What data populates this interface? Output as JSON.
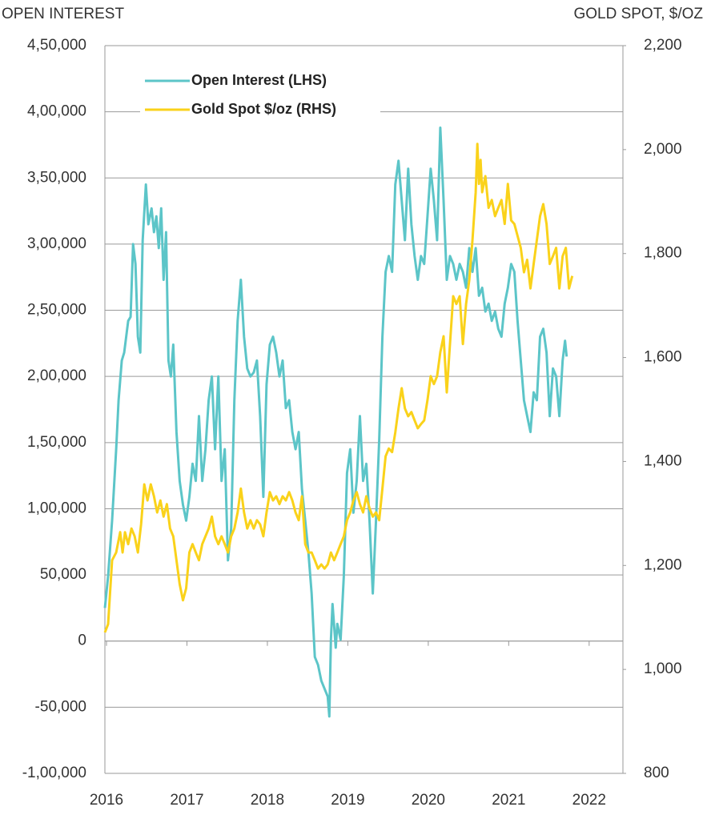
{
  "chart_data": {
    "type": "line",
    "ylabel": "OPEN INTEREST",
    "y2label": "GOLD SPOT, $/OZ",
    "legend": "upper left",
    "grid": true,
    "xlim": [
      2015.98,
      2022.42
    ],
    "xticks": [
      2016,
      2017,
      2018,
      2019,
      2020,
      2021,
      2022
    ],
    "ylim": [
      -100000,
      450000
    ],
    "yticks": [
      {
        "value": -100000,
        "label": "-1,00,000"
      },
      {
        "value": -50000,
        "label": "-50,000"
      },
      0,
      {
        "value": 50000,
        "label": "50,000"
      },
      {
        "value": 100000,
        "label": "1,00,000"
      },
      {
        "value": 150000,
        "label": "1,50,000"
      },
      {
        "value": 200000,
        "label": "2,00,000"
      },
      {
        "value": 250000,
        "label": "2,50,000"
      },
      {
        "value": 300000,
        "label": "3,00,000"
      },
      {
        "value": 350000,
        "label": "3,50,000"
      },
      {
        "value": 400000,
        "label": "4,00,000"
      },
      {
        "value": 450000,
        "label": "4,50,000"
      }
    ],
    "y2lim": [
      800,
      2200
    ],
    "y2ticks": [
      800,
      {
        "value": 1000,
        "label": "1,000"
      },
      {
        "value": 1200,
        "label": "1,200"
      },
      {
        "value": 1400,
        "label": "1,400"
      },
      {
        "value": 1600,
        "label": "1,600"
      },
      {
        "value": 1800,
        "label": "1,800"
      },
      {
        "value": 2000,
        "label": "2,000"
      },
      {
        "value": 2200,
        "label": "2,200"
      }
    ],
    "series": [
      {
        "name": "Open Interest (LHS)",
        "color": "#5cc5c8",
        "axis": "y",
        "x": [
          2015.98,
          2016.02,
          2016.07,
          2016.12,
          2016.15,
          2016.19,
          2016.22,
          2016.27,
          2016.3,
          2016.33,
          2016.36,
          2016.39,
          2016.42,
          2016.45,
          2016.49,
          2016.52,
          2016.56,
          2016.59,
          2016.62,
          2016.65,
          2016.68,
          2016.71,
          2016.74,
          2016.77,
          2016.8,
          2016.83,
          2016.87,
          2016.91,
          2016.95,
          2016.99,
          2017.03,
          2017.07,
          2017.11,
          2017.15,
          2017.19,
          2017.23,
          2017.27,
          2017.31,
          2017.35,
          2017.39,
          2017.43,
          2017.47,
          2017.51,
          2017.55,
          2017.59,
          2017.63,
          2017.67,
          2017.71,
          2017.75,
          2017.79,
          2017.83,
          2017.87,
          2017.91,
          2017.95,
          2017.99,
          2018.03,
          2018.07,
          2018.11,
          2018.15,
          2018.19,
          2018.23,
          2018.27,
          2018.31,
          2018.35,
          2018.39,
          2018.43,
          2018.47,
          2018.51,
          2018.55,
          2018.59,
          2018.63,
          2018.67,
          2018.71,
          2018.75,
          2018.77,
          2018.79,
          2018.81,
          2018.85,
          2018.87,
          2018.91,
          2018.95,
          2018.99,
          2019.03,
          2019.07,
          2019.11,
          2019.15,
          2019.19,
          2019.23,
          2019.27,
          2019.31,
          2019.35,
          2019.39,
          2019.43,
          2019.47,
          2019.51,
          2019.55,
          2019.59,
          2019.63,
          2019.67,
          2019.71,
          2019.75,
          2019.79,
          2019.83,
          2019.87,
          2019.91,
          2019.95,
          2019.99,
          2020.03,
          2020.07,
          2020.11,
          2020.15,
          2020.19,
          2020.23,
          2020.27,
          2020.31,
          2020.35,
          2020.39,
          2020.43,
          2020.47,
          2020.51,
          2020.55,
          2020.59,
          2020.63,
          2020.67,
          2020.71,
          2020.75,
          2020.79,
          2020.83,
          2020.87,
          2020.91,
          2020.95,
          2020.99,
          2021.03,
          2021.07,
          2021.11,
          2021.15,
          2021.19,
          2021.23,
          2021.27,
          2021.31,
          2021.35,
          2021.39,
          2021.43,
          2021.47,
          2021.51,
          2021.55,
          2021.59,
          2021.63,
          2021.67,
          2021.7,
          2021.72
        ],
        "values": [
          25000,
          49000,
          91000,
          145000,
          182000,
          212000,
          218000,
          242000,
          245000,
          300000,
          285000,
          230000,
          218000,
          303000,
          345000,
          315000,
          327000,
          309000,
          321000,
          297000,
          327000,
          273000,
          309000,
          212000,
          200000,
          224000,
          158000,
          121000,
          103000,
          91000,
          109000,
          134000,
          121000,
          170000,
          121000,
          145000,
          182000,
          200000,
          145000,
          200000,
          121000,
          145000,
          61000,
          85000,
          182000,
          242000,
          273000,
          230000,
          206000,
          200000,
          203000,
          212000,
          170000,
          109000,
          194000,
          224000,
          230000,
          218000,
          200000,
          212000,
          176000,
          182000,
          158000,
          145000,
          158000,
          115000,
          91000,
          67000,
          36000,
          -12000,
          -18000,
          -30000,
          -36000,
          -42000,
          -57000,
          1000,
          28000,
          -5000,
          13000,
          1000,
          49000,
          127000,
          145000,
          97000,
          121000,
          170000,
          121000,
          134000,
          91000,
          36000,
          91000,
          152000,
          230000,
          279000,
          291000,
          279000,
          345000,
          363000,
          333000,
          303000,
          357000,
          315000,
          291000,
          273000,
          291000,
          285000,
          321000,
          357000,
          333000,
          303000,
          388000,
          333000,
          273000,
          291000,
          285000,
          273000,
          285000,
          279000,
          267000,
          297000,
          279000,
          297000,
          261000,
          267000,
          249000,
          255000,
          242000,
          249000,
          236000,
          230000,
          255000,
          267000,
          285000,
          279000,
          242000,
          212000,
          182000,
          170000,
          158000,
          188000,
          182000,
          230000,
          236000,
          218000,
          170000,
          206000,
          200000,
          170000,
          212000,
          227000,
          215000
        ]
      },
      {
        "name": "Gold Spot $/oz (RHS)",
        "color": "#fad21a",
        "axis": "y2",
        "x": [
          2015.98,
          2016.02,
          2016.07,
          2016.12,
          2016.17,
          2016.2,
          2016.23,
          2016.27,
          2016.31,
          2016.35,
          2016.39,
          2016.43,
          2016.47,
          2016.51,
          2016.55,
          2016.59,
          2016.63,
          2016.67,
          2016.71,
          2016.75,
          2016.79,
          2016.83,
          2016.87,
          2016.91,
          2016.95,
          2016.99,
          2017.03,
          2017.07,
          2017.11,
          2017.15,
          2017.19,
          2017.23,
          2017.27,
          2017.31,
          2017.35,
          2017.39,
          2017.43,
          2017.47,
          2017.51,
          2017.55,
          2017.59,
          2017.63,
          2017.67,
          2017.71,
          2017.75,
          2017.79,
          2017.83,
          2017.87,
          2017.91,
          2017.95,
          2017.99,
          2018.03,
          2018.07,
          2018.11,
          2018.15,
          2018.19,
          2018.23,
          2018.27,
          2018.31,
          2018.35,
          2018.39,
          2018.43,
          2018.47,
          2018.51,
          2018.55,
          2018.59,
          2018.63,
          2018.67,
          2018.71,
          2018.75,
          2018.79,
          2018.83,
          2018.87,
          2018.91,
          2018.95,
          2018.99,
          2019.03,
          2019.07,
          2019.11,
          2019.15,
          2019.19,
          2019.23,
          2019.27,
          2019.31,
          2019.35,
          2019.39,
          2019.43,
          2019.47,
          2019.51,
          2019.55,
          2019.59,
          2019.63,
          2019.67,
          2019.71,
          2019.75,
          2019.79,
          2019.83,
          2019.87,
          2019.91,
          2019.95,
          2019.99,
          2020.03,
          2020.07,
          2020.11,
          2020.15,
          2020.19,
          2020.23,
          2020.27,
          2020.31,
          2020.35,
          2020.39,
          2020.43,
          2020.47,
          2020.51,
          2020.55,
          2020.59,
          2020.61,
          2020.63,
          2020.65,
          2020.67,
          2020.71,
          2020.75,
          2020.79,
          2020.83,
          2020.87,
          2020.91,
          2020.95,
          2020.99,
          2021.03,
          2021.07,
          2021.11,
          2021.15,
          2021.19,
          2021.23,
          2021.27,
          2021.31,
          2021.35,
          2021.39,
          2021.43,
          2021.47,
          2021.51,
          2021.55,
          2021.59,
          2021.63,
          2021.67,
          2021.71,
          2021.75,
          2021.79
        ],
        "values": [
          1071,
          1087,
          1210,
          1225,
          1264,
          1225,
          1264,
          1241,
          1271,
          1256,
          1225,
          1279,
          1356,
          1325,
          1356,
          1333,
          1302,
          1325,
          1294,
          1318,
          1271,
          1256,
          1210,
          1164,
          1133,
          1156,
          1225,
          1241,
          1225,
          1210,
          1241,
          1256,
          1271,
          1294,
          1256,
          1241,
          1256,
          1241,
          1225,
          1256,
          1271,
          1302,
          1348,
          1302,
          1271,
          1287,
          1271,
          1287,
          1279,
          1256,
          1302,
          1341,
          1325,
          1333,
          1318,
          1333,
          1325,
          1341,
          1325,
          1302,
          1287,
          1333,
          1241,
          1225,
          1225,
          1210,
          1194,
          1202,
          1194,
          1202,
          1225,
          1210,
          1225,
          1241,
          1256,
          1287,
          1302,
          1325,
          1341,
          1318,
          1302,
          1333,
          1310,
          1294,
          1302,
          1287,
          1348,
          1410,
          1425,
          1418,
          1456,
          1502,
          1541,
          1502,
          1487,
          1495,
          1479,
          1464,
          1472,
          1479,
          1518,
          1564,
          1549,
          1564,
          1610,
          1641,
          1533,
          1626,
          1718,
          1703,
          1718,
          1626,
          1703,
          1749,
          1826,
          1918,
          2011,
          1934,
          1980,
          1918,
          1949,
          1888,
          1903,
          1872,
          1888,
          1903,
          1857,
          1934,
          1864,
          1857,
          1834,
          1811,
          1764,
          1788,
          1733,
          1780,
          1826,
          1872,
          1895,
          1857,
          1780,
          1795,
          1811,
          1733,
          1795,
          1811,
          1733,
          1757
        ]
      }
    ]
  }
}
